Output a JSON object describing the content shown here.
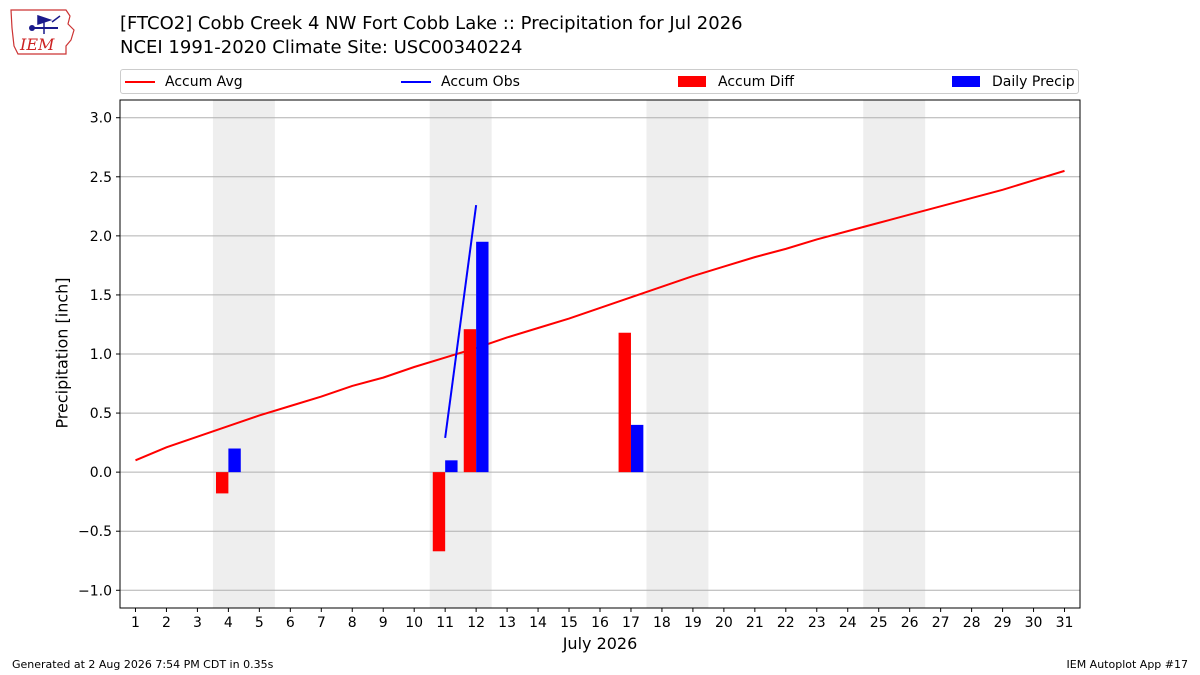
{
  "header": {
    "title_line1": "[FTCO2] Cobb Creek 4 NW Fort Cobb Lake :: Precipitation for Jul 2026",
    "title_line2": "NCEI 1991-2020 Climate Site: USC00340224",
    "logo_text": "IEM"
  },
  "legend": {
    "items": [
      "Accum Avg",
      "Accum Obs",
      "Accum Diff",
      "Daily Precip"
    ]
  },
  "footer": {
    "left": "Generated at 2 Aug 2026 7:54 PM CDT in 0.35s",
    "right": "IEM Autoplot App #17"
  },
  "colors": {
    "accum_avg": "#ff0000",
    "accum_obs": "#0000ff",
    "accum_diff": "#ff0000",
    "daily_precip": "#0000ff",
    "weekend_shade": "#eeeeee",
    "grid": "#b0b0b0"
  },
  "chart_data": {
    "type": "bar",
    "xlabel": "July 2026",
    "ylabel": "Precipitation [inch]",
    "xlim": [
      0.5,
      31.5
    ],
    "ylim": [
      -1.15,
      3.15
    ],
    "xticks": [
      1,
      2,
      3,
      4,
      5,
      6,
      7,
      8,
      9,
      10,
      11,
      12,
      13,
      14,
      15,
      16,
      17,
      18,
      19,
      20,
      21,
      22,
      23,
      24,
      25,
      26,
      27,
      28,
      29,
      30,
      31
    ],
    "yticks": [
      -1.0,
      -0.5,
      0.0,
      0.5,
      1.0,
      1.5,
      2.0,
      2.5,
      3.0
    ],
    "ytick_labels": [
      "−1.0",
      "−0.5",
      "0.0",
      "0.5",
      "1.0",
      "1.5",
      "2.0",
      "2.5",
      "3.0"
    ],
    "grid": "horizontal",
    "legend_position": "top",
    "weekend_bands": [
      [
        3.5,
        5.5
      ],
      [
        10.5,
        12.5
      ],
      [
        17.5,
        19.5
      ],
      [
        24.5,
        26.5
      ]
    ],
    "series": [
      {
        "name": "Accum Avg",
        "kind": "line",
        "x": [
          1,
          2,
          3,
          4,
          5,
          6,
          7,
          8,
          9,
          10,
          11,
          12,
          13,
          14,
          15,
          16,
          17,
          18,
          19,
          20,
          21,
          22,
          23,
          24,
          25,
          26,
          27,
          28,
          29,
          30,
          31
        ],
        "values": [
          0.1,
          0.21,
          0.3,
          0.39,
          0.48,
          0.56,
          0.64,
          0.73,
          0.8,
          0.89,
          0.97,
          1.05,
          1.14,
          1.22,
          1.3,
          1.39,
          1.48,
          1.57,
          1.66,
          1.74,
          1.82,
          1.89,
          1.97,
          2.04,
          2.11,
          2.18,
          2.25,
          2.32,
          2.39,
          2.47,
          2.55
        ]
      },
      {
        "name": "Accum Obs",
        "kind": "line",
        "x": [
          11,
          12
        ],
        "values": [
          0.29,
          2.26
        ]
      },
      {
        "name": "Accum Diff",
        "kind": "bar",
        "x": [
          4,
          11,
          12,
          17
        ],
        "values": [
          -0.18,
          -0.67,
          1.21,
          1.18
        ]
      },
      {
        "name": "Daily Precip",
        "kind": "bar",
        "x": [
          4,
          11,
          12,
          17
        ],
        "values": [
          0.2,
          0.1,
          1.95,
          0.4
        ]
      }
    ]
  }
}
